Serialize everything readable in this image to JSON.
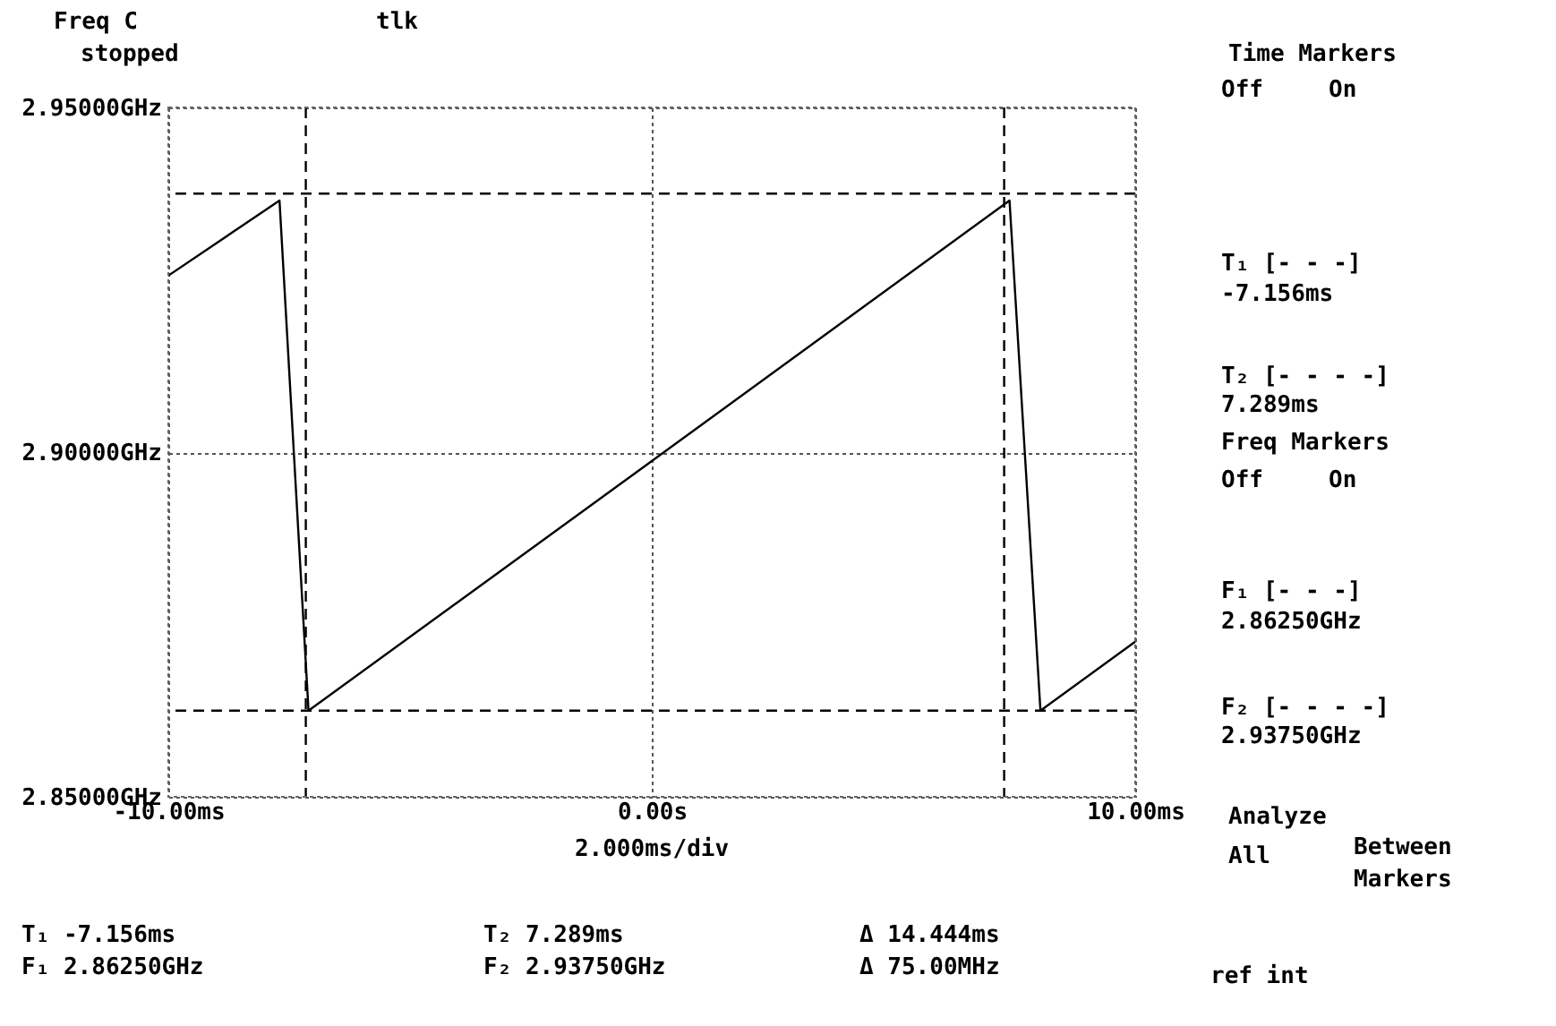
{
  "chart_data": {
    "type": "line",
    "series": [
      {
        "color": "#000000",
        "x": [
          -10,
          -7.7,
          -7.1,
          0,
          7.4,
          8.04,
          10
        ],
        "values": [
          2.9256,
          2.9365,
          2.8625,
          2.8987,
          2.9365,
          2.8625,
          2.8725
        ]
      }
    ],
    "xlim": [
      -10,
      10
    ],
    "xticks": [
      {
        "value": -10,
        "label": "-10.00ms"
      },
      {
        "value": 0,
        "label": "0.00s"
      },
      {
        "value": 10,
        "label": "10.00ms"
      }
    ],
    "ylim": [
      2.85,
      2.95
    ],
    "yticks": [
      {
        "value": 2.85,
        "label": "2.85000GHz"
      },
      {
        "value": 2.9,
        "label": "2.90000GHz"
      },
      {
        "value": 2.95,
        "label": "2.95000GHz"
      }
    ],
    "grid": true,
    "line_style": "solid",
    "marker": "none",
    "ref_lines": [
      {
        "axis": "x",
        "value": -7.156,
        "color": "#000000",
        "line_style": "dashed"
      },
      {
        "axis": "x",
        "value": 7.289,
        "color": "#000000",
        "line_style": "dashed"
      },
      {
        "axis": "y",
        "value": 2.8625,
        "color": "#000000",
        "line_style": "dashed"
      },
      {
        "axis": "y",
        "value": 2.9375,
        "color": "#000000",
        "line_style": "dashed"
      }
    ],
    "annotations": [
      "Freq C",
      "stopped",
      "tlk",
      "2.000ms/div",
      "T₁ -7.156ms",
      "F₁ 2.86250GHz",
      "T₂ 7.289ms",
      "F₂ 2.93750GHz",
      "Δ 14.444ms",
      "Δ 75.00MHz",
      "Time Markers",
      "Off",
      "On",
      "T₁ [- - -]",
      "-7.156ms",
      "T₂ [- - - -]",
      "7.289ms",
      "Freq Markers",
      "Off",
      "On",
      "F₁ [- - -]",
      "2.86250GHz",
      "F₂ [- - - -]",
      "2.93750GHz",
      "Analyze",
      "All",
      "Between",
      "Markers",
      "ref int"
    ]
  }
}
